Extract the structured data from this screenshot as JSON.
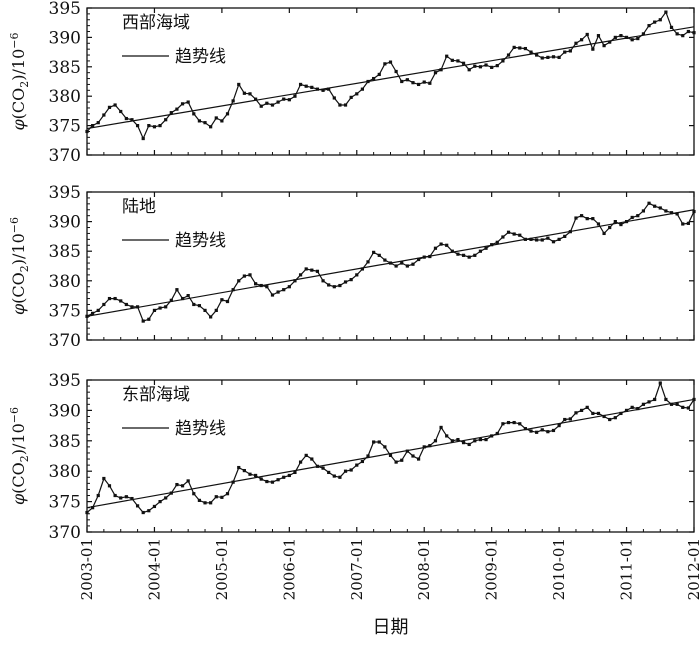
{
  "chart_data": [
    {
      "type": "line",
      "panel_label": "西部海域",
      "legend": "趋势线",
      "ylabel": "φ(CO2)/10^-6",
      "ylim": [
        370,
        395
      ],
      "yticks": [
        370,
        375,
        380,
        385,
        390,
        395
      ],
      "trend": {
        "start": [
          0,
          374.5
        ],
        "end": [
          108,
          391.8
        ]
      },
      "series": [
        {
          "x": [
            0,
            1,
            2,
            3,
            4,
            5,
            6,
            7,
            8,
            9,
            10,
            11,
            12,
            13,
            14,
            15,
            16,
            17,
            18,
            19,
            20,
            21,
            22,
            23,
            24,
            25,
            26,
            27,
            28,
            29,
            30,
            31,
            32,
            33,
            34,
            35,
            36,
            37,
            38,
            39,
            40,
            41,
            42,
            43,
            44,
            45,
            46,
            47,
            48,
            49,
            50,
            51,
            52,
            53,
            54,
            55,
            56,
            57,
            58,
            59,
            60,
            61,
            62,
            63,
            64,
            65,
            66,
            67,
            68,
            69,
            70,
            71,
            72,
            73,
            74,
            75,
            76,
            77,
            78,
            79,
            80,
            81,
            82,
            83,
            84,
            85,
            86,
            87,
            88,
            89,
            90,
            91,
            92,
            93,
            94,
            95,
            96,
            97,
            98,
            99,
            100,
            101,
            102,
            103,
            104,
            105,
            106,
            107,
            108
          ],
          "y": [
            374.0,
            375.0,
            375.5,
            376.8,
            378.1,
            378.5,
            377.4,
            376.2,
            376.0,
            375.0,
            372.8,
            375.0,
            374.8,
            375.0,
            376.0,
            377.2,
            377.8,
            378.7,
            379.0,
            377.0,
            375.8,
            375.5,
            374.8,
            376.3,
            375.8,
            377.0,
            379.2,
            382.0,
            380.5,
            380.4,
            379.5,
            378.3,
            378.8,
            378.5,
            379.0,
            379.5,
            379.4,
            380.0,
            382.0,
            381.7,
            381.5,
            381.2,
            381.0,
            381.2,
            379.7,
            378.5,
            378.5,
            379.8,
            380.4,
            381.2,
            382.5,
            383.0,
            383.7,
            385.5,
            385.8,
            384.2,
            382.5,
            382.8,
            382.3,
            382.0,
            382.4,
            382.2,
            384.0,
            384.5,
            386.8,
            386.1,
            386.0,
            385.6,
            384.5,
            385.1,
            385.0,
            385.3,
            384.9,
            385.2,
            386.0,
            387.0,
            388.3,
            388.2,
            388.1,
            387.5,
            387.0,
            386.5,
            386.6,
            386.7,
            386.6,
            387.5,
            387.7,
            389.0,
            389.6,
            390.5,
            388.0,
            390.3,
            388.6,
            389.2,
            390.0,
            390.3,
            390.0,
            389.6,
            389.8,
            390.6,
            392.0,
            392.6,
            393.0,
            394.3,
            391.7,
            390.6,
            390.3,
            391.0,
            390.8
          ]
        }
      ]
    },
    {
      "type": "line",
      "panel_label": "陆地",
      "legend": "趋势线",
      "ylabel": "φ(CO2)/10^-6",
      "ylim": [
        370,
        395
      ],
      "yticks": [
        370,
        375,
        380,
        385,
        390,
        395
      ],
      "trend": {
        "start": [
          0,
          374.0
        ],
        "end": [
          108,
          392.0
        ]
      },
      "series": [
        {
          "x": [
            0,
            1,
            2,
            3,
            4,
            5,
            6,
            7,
            8,
            9,
            10,
            11,
            12,
            13,
            14,
            15,
            16,
            17,
            18,
            19,
            20,
            21,
            22,
            23,
            24,
            25,
            26,
            27,
            28,
            29,
            30,
            31,
            32,
            33,
            34,
            35,
            36,
            37,
            38,
            39,
            40,
            41,
            42,
            43,
            44,
            45,
            46,
            47,
            48,
            49,
            50,
            51,
            52,
            53,
            54,
            55,
            56,
            57,
            58,
            59,
            60,
            61,
            62,
            63,
            64,
            65,
            66,
            67,
            68,
            69,
            70,
            71,
            72,
            73,
            74,
            75,
            76,
            77,
            78,
            79,
            80,
            81,
            82,
            83,
            84,
            85,
            86,
            87,
            88,
            89,
            90,
            91,
            92,
            93,
            94,
            95,
            96,
            97,
            98,
            99,
            100,
            101,
            102,
            103,
            104,
            105,
            106,
            107,
            108
          ],
          "y": [
            374.0,
            374.5,
            375.0,
            376.0,
            377.0,
            377.0,
            376.6,
            376.0,
            375.6,
            375.6,
            373.2,
            373.5,
            375.0,
            375.4,
            375.6,
            376.7,
            378.5,
            377.0,
            377.5,
            376.0,
            375.8,
            375.0,
            373.9,
            375.0,
            376.8,
            376.5,
            378.5,
            380.0,
            380.8,
            381.0,
            379.5,
            379.2,
            379.0,
            377.6,
            378.1,
            378.5,
            379.0,
            380.0,
            381.0,
            382.0,
            381.8,
            381.6,
            380.0,
            379.3,
            379.0,
            379.2,
            379.8,
            380.2,
            381.0,
            382.0,
            383.2,
            384.8,
            384.3,
            383.5,
            383.0,
            382.5,
            383.0,
            382.5,
            382.8,
            383.6,
            384.0,
            384.1,
            385.5,
            386.2,
            386.0,
            385.0,
            384.5,
            384.3,
            384.0,
            384.3,
            385.0,
            385.5,
            386.1,
            386.5,
            387.4,
            388.2,
            387.9,
            387.7,
            387.0,
            387.0,
            386.9,
            386.9,
            387.2,
            386.6,
            387.0,
            387.5,
            388.3,
            390.6,
            391.0,
            390.5,
            390.5,
            389.6,
            388.0,
            389.0,
            390.0,
            389.5,
            390.0,
            390.7,
            391.0,
            391.8,
            393.1,
            392.6,
            392.3,
            391.8,
            391.5,
            391.3,
            389.6,
            389.7,
            391.7
          ]
        }
      ]
    },
    {
      "type": "line",
      "panel_label": "东部海域",
      "legend": "趋势线",
      "ylabel": "φ(CO2)/10^-6",
      "ylim": [
        370,
        395
      ],
      "yticks": [
        370,
        375,
        380,
        385,
        390,
        395
      ],
      "trend": {
        "start": [
          0,
          374.0
        ],
        "end": [
          108,
          391.8
        ]
      },
      "series": [
        {
          "x": [
            0,
            1,
            2,
            3,
            4,
            5,
            6,
            7,
            8,
            9,
            10,
            11,
            12,
            13,
            14,
            15,
            16,
            17,
            18,
            19,
            20,
            21,
            22,
            23,
            24,
            25,
            26,
            27,
            28,
            29,
            30,
            31,
            32,
            33,
            34,
            35,
            36,
            37,
            38,
            39,
            40,
            41,
            42,
            43,
            44,
            45,
            46,
            47,
            48,
            49,
            50,
            51,
            52,
            53,
            54,
            55,
            56,
            57,
            58,
            59,
            60,
            61,
            62,
            63,
            64,
            65,
            66,
            67,
            68,
            69,
            70,
            71,
            72,
            73,
            74,
            75,
            76,
            77,
            78,
            79,
            80,
            81,
            82,
            83,
            84,
            85,
            86,
            87,
            88,
            89,
            90,
            91,
            92,
            93,
            94,
            95,
            96,
            97,
            98,
            99,
            100,
            101,
            102,
            103,
            104,
            105,
            106,
            107,
            108
          ],
          "y": [
            373.2,
            374.0,
            376.0,
            378.8,
            377.6,
            376.0,
            375.6,
            375.8,
            375.5,
            374.3,
            373.2,
            373.5,
            374.2,
            375.0,
            375.6,
            376.4,
            377.8,
            377.6,
            378.4,
            376.3,
            375.2,
            374.8,
            374.8,
            375.8,
            375.7,
            376.3,
            378.2,
            380.6,
            380.1,
            379.5,
            379.3,
            378.7,
            378.3,
            378.2,
            378.6,
            379.0,
            379.3,
            379.8,
            381.5,
            382.6,
            382.0,
            380.8,
            380.5,
            379.8,
            379.2,
            379.0,
            380.0,
            380.2,
            381.0,
            381.6,
            382.5,
            384.8,
            384.8,
            384.0,
            382.6,
            381.5,
            381.8,
            383.3,
            382.5,
            382.0,
            384.0,
            384.2,
            385.0,
            387.2,
            385.8,
            385.0,
            385.2,
            384.7,
            384.4,
            385.0,
            385.2,
            385.2,
            385.8,
            386.2,
            387.8,
            388.0,
            388.0,
            387.8,
            387.0,
            386.6,
            386.4,
            386.8,
            386.5,
            386.7,
            387.5,
            388.5,
            388.6,
            389.6,
            390.0,
            390.5,
            389.5,
            389.5,
            389.0,
            388.5,
            388.8,
            389.5,
            390.0,
            390.5,
            390.3,
            391.0,
            391.4,
            391.8,
            394.5,
            391.8,
            391.0,
            391.0,
            390.5,
            390.4,
            391.8
          ]
        }
      ]
    }
  ],
  "xaxis": {
    "label": "日期",
    "ticks": [
      "2003-01",
      "2004-01",
      "2005-01",
      "2006-01",
      "2007-01",
      "2008-01",
      "2009-01",
      "2010-01",
      "2011-01",
      "2012-01"
    ],
    "range": [
      0,
      108
    ]
  },
  "colors": {
    "line": "#111111",
    "axis": "#111111"
  }
}
